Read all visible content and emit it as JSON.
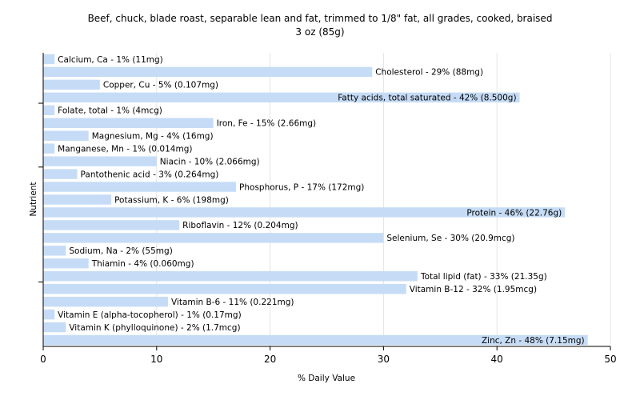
{
  "chart_data": {
    "type": "bar",
    "orientation": "horizontal",
    "title": "Beef, chuck, blade roast, separable lean and fat, trimmed to 1/8\" fat, all grades, cooked, braised",
    "subtitle": "3 oz (85g)",
    "xlabel": "% Daily Value",
    "ylabel": "Nutrient",
    "xlim": [
      0,
      50
    ],
    "xticks": [
      0,
      10,
      20,
      30,
      40,
      50
    ],
    "grid": true,
    "bar_color": "#c6dcf6",
    "categories": [
      "Calcium, Ca",
      "Cholesterol",
      "Copper, Cu",
      "Fatty acids, total saturated",
      "Folate, total",
      "Iron, Fe",
      "Magnesium, Mg",
      "Manganese, Mn",
      "Niacin",
      "Pantothenic acid",
      "Phosphorus, P",
      "Potassium, K",
      "Protein",
      "Riboflavin",
      "Selenium, Se",
      "Sodium, Na",
      "Thiamin",
      "Total lipid (fat)",
      "Vitamin B-12",
      "Vitamin B-6",
      "Vitamin E (alpha-tocopherol)",
      "Vitamin K (phylloquinone)",
      "Zinc, Zn"
    ],
    "values": [
      1,
      29,
      5,
      42,
      1,
      15,
      4,
      1,
      10,
      3,
      17,
      6,
      46,
      12,
      30,
      2,
      4,
      33,
      32,
      11,
      1,
      2,
      48
    ],
    "labels": [
      "Calcium, Ca - 1% (11mg)",
      "Cholesterol - 29% (88mg)",
      "Copper, Cu - 5% (0.107mg)",
      "Fatty acids, total saturated - 42% (8.500g)",
      "Folate, total - 1% (4mcg)",
      "Iron, Fe - 15% (2.66mg)",
      "Magnesium, Mg - 4% (16mg)",
      "Manganese, Mn - 1% (0.014mg)",
      "Niacin - 10% (2.066mg)",
      "Pantothenic acid - 3% (0.264mg)",
      "Phosphorus, P - 17% (172mg)",
      "Potassium, K - 6% (198mg)",
      "Protein - 46% (22.76g)",
      "Riboflavin - 12% (0.204mg)",
      "Selenium, Se - 30% (20.9mcg)",
      "Sodium, Na - 2% (55mg)",
      "Thiamin - 4% (0.060mg)",
      "Total lipid (fat) - 33% (21.35g)",
      "Vitamin B-12 - 32% (1.95mcg)",
      "Vitamin B-6 - 11% (0.221mg)",
      "Vitamin E (alpha-tocopherol) - 1% (0.17mg)",
      "Vitamin K (phylloquinone) - 2% (1.7mcg)",
      "Zinc, Zn - 48% (7.15mg)"
    ]
  }
}
